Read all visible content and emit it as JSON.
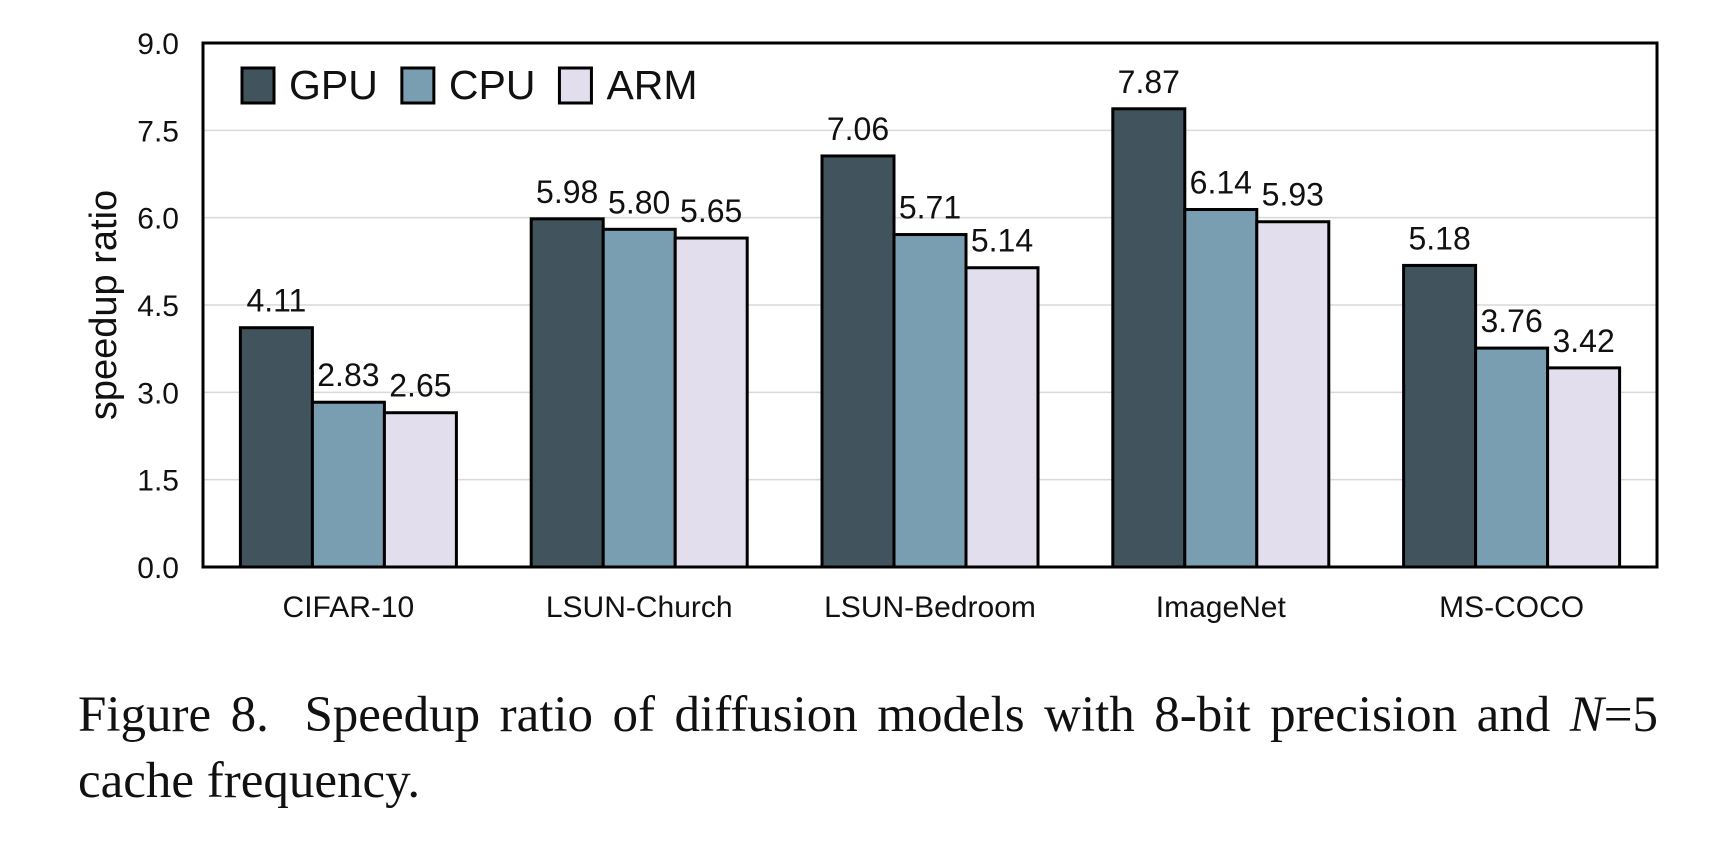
{
  "chart_data": {
    "type": "bar",
    "categories": [
      "CIFAR-10",
      "LSUN-Church",
      "LSUN-Bedroom",
      "ImageNet",
      "MS-COCO"
    ],
    "series": [
      {
        "name": "GPU",
        "values": [
          4.11,
          5.98,
          7.06,
          7.87,
          5.18
        ],
        "labels": [
          "4.11",
          "5.98",
          "7.06",
          "7.87",
          "5.18"
        ],
        "color": "#41535d"
      },
      {
        "name": "CPU",
        "values": [
          2.83,
          5.8,
          5.71,
          6.14,
          3.76
        ],
        "labels": [
          "2.83",
          "5.80",
          "5.71",
          "6.14",
          "3.76"
        ],
        "color": "#7a9eb1"
      },
      {
        "name": "ARM",
        "values": [
          2.65,
          5.65,
          5.14,
          5.93,
          3.42
        ],
        "labels": [
          "2.65",
          "5.65",
          "5.14",
          "5.93",
          "3.42"
        ],
        "color": "#e3deee"
      }
    ],
    "xlabel": "",
    "ylabel": "speedup ratio",
    "ylim": [
      0,
      9.0
    ],
    "yticks": [
      "0.0",
      "1.5",
      "3.0",
      "4.5",
      "6.0",
      "7.5",
      "9.0"
    ],
    "grid": true,
    "legend_position": "top-left"
  },
  "caption": {
    "label": "Figure 8.",
    "text_part1": "Speedup ratio of diffusion models with 8-bit precision and",
    "var": "N",
    "text_part2": "=5 cache frequency."
  }
}
